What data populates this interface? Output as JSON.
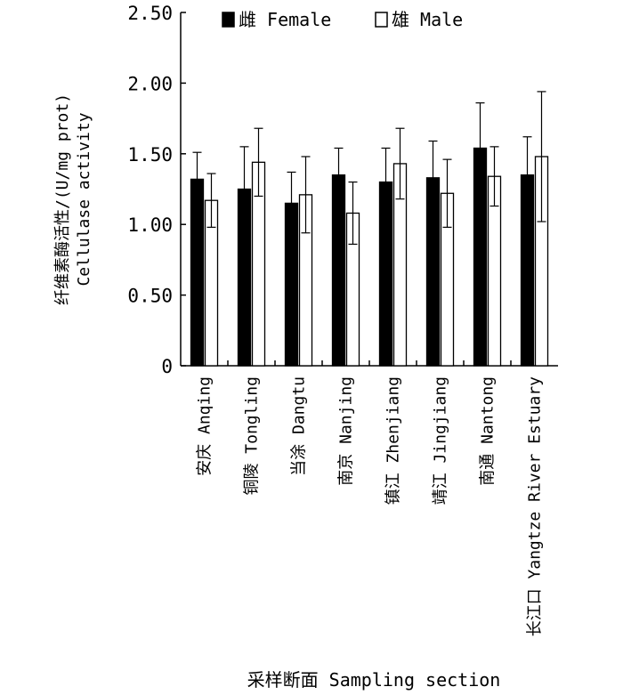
{
  "chart_data": {
    "type": "bar",
    "ylabel_lines": [
      "纤维素酶活性/(U/mg prot)",
      "Cellulase activity"
    ],
    "xlabel": "采样断面 Sampling section",
    "ylim": [
      0,
      2.5
    ],
    "yticks": [
      "0",
      "0.50",
      "1.00",
      "1.50",
      "2.00",
      "2.50"
    ],
    "ytick_values": [
      0,
      0.5,
      1.0,
      1.5,
      2.0,
      2.5
    ],
    "grid": false,
    "legend_position": "top",
    "categories": [
      "安庆 Anqing",
      "铜陵 Tongling",
      "当涂 Dangtu",
      "南京 Nanjing",
      "镇江 Zhenjiang",
      "靖江 Jingjiang",
      "南通 Nantong",
      "长江口 Yangtze River Estuary"
    ],
    "series": [
      {
        "name": "雌 Female",
        "color": "#000000",
        "values": [
          1.32,
          1.25,
          1.15,
          1.35,
          1.3,
          1.33,
          1.54,
          1.35
        ],
        "errors": [
          0.19,
          0.3,
          0.22,
          0.19,
          0.24,
          0.26,
          0.32,
          0.27
        ]
      },
      {
        "name": "雄 Male",
        "color": "#ffffff",
        "values": [
          1.17,
          1.44,
          1.21,
          1.08,
          1.43,
          1.22,
          1.34,
          1.48
        ],
        "errors": [
          0.19,
          0.24,
          0.27,
          0.22,
          0.25,
          0.24,
          0.21,
          0.46
        ]
      }
    ]
  }
}
